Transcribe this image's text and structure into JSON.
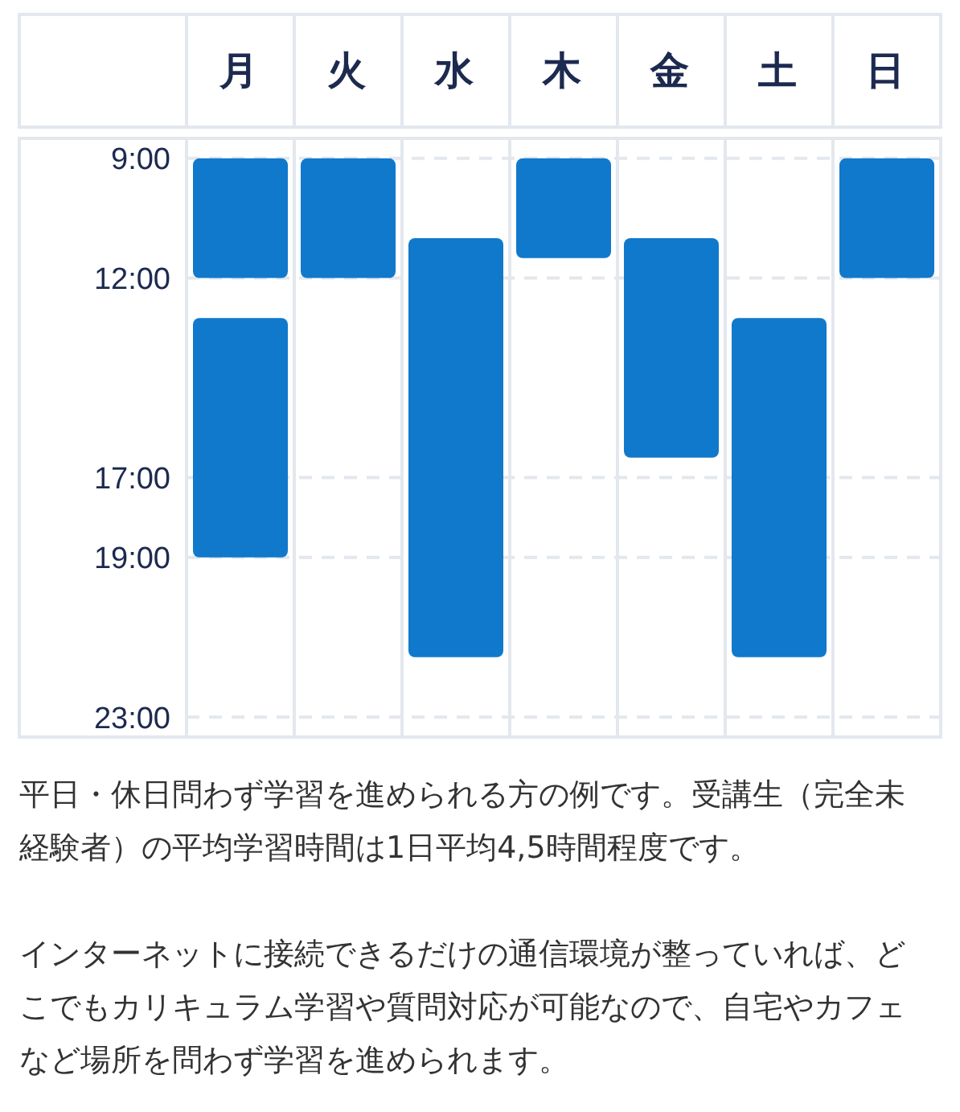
{
  "chart_data": {
    "type": "bar",
    "categories": [
      "月",
      "火",
      "水",
      "木",
      "金",
      "土",
      "日"
    ],
    "series": [
      {
        "color": "#1079cc",
        "base": [
          9,
          9,
          11,
          9,
          11,
          13,
          9
        ],
        "values": [
          3,
          3,
          10.5,
          2.5,
          5.5,
          8.5,
          3
        ]
      },
      {
        "color": "#1079cc",
        "base": [
          13,
          null,
          null,
          null,
          null,
          null,
          null
        ],
        "values": [
          6,
          null,
          null,
          null,
          null,
          null,
          null
        ]
      }
    ],
    "ylim": [
      23.5,
      8.5
    ],
    "yticks": [
      {
        "value": 9,
        "label": "9:00"
      },
      {
        "value": 12,
        "label": "12:00"
      },
      {
        "value": 17,
        "label": "17:00"
      },
      {
        "value": 19,
        "label": "19:00"
      },
      {
        "value": 23,
        "label": "23:00"
      }
    ],
    "grid": "y",
    "line_style": "dashed",
    "annotations": [
      "平日・休日問わず学習を進められる方の例です。受講生（完全未経験者）の平均学習時間は1日平均4,5時間程度です。",
      "インターネットに接続できるだけの通信環境が整っていれば、どこでもカリキュラム学習や質問対応が可能なので、自宅やカフェなど場所を問わず学習を進められます。"
    ]
  }
}
